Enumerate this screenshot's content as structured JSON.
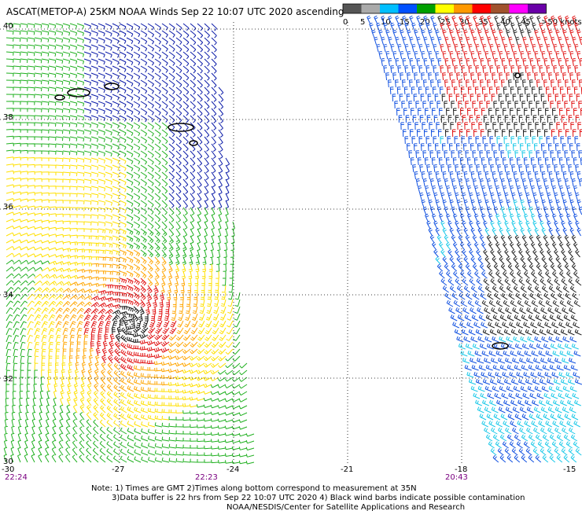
{
  "title": "ASCAT(METOP-A) 25KM NOAA Winds Sep 22 10:07 UTC 2020 ascending",
  "colorbar": {
    "labels": [
      "0",
      "5",
      "10",
      "15",
      "20",
      "25",
      "30",
      "35",
      "40",
      "45",
      ">50 knots"
    ],
    "colors": [
      "#555555",
      "#aaaaaa",
      "#00bfff",
      "#0050ff",
      "#00a000",
      "#ffff00",
      "#ff9900",
      "#ff0000",
      "#a0522d",
      "#ff00ff",
      "#6a00a8"
    ]
  },
  "axes": {
    "lat_labels": [
      "40",
      "38",
      "36",
      "34",
      "32",
      "30"
    ],
    "lon_labels": [
      "-30",
      "-27",
      "-24",
      "-21",
      "-18",
      "-15"
    ]
  },
  "pass_times": [
    "22:24",
    "22:23",
    "20:43"
  ],
  "notes": [
    "Note: 1) Times are GMT 2)Times along bottom correspond to measurement at 35N",
    "3)Data buffer is 22 hrs from Sep 22 10:07 UTC 2020 4) Black wind barbs indicate possible contamination",
    "NOAA/NESDIS/Center for Satellite Applications and Research"
  ]
}
